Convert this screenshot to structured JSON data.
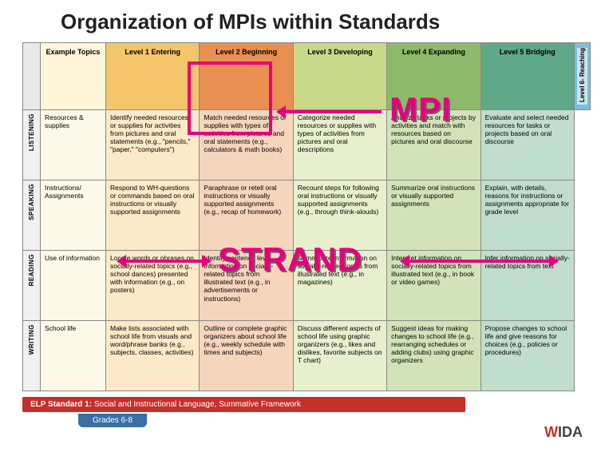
{
  "title": "Organization of MPIs within Standards",
  "headers": {
    "topics": "Example Topics",
    "l1": "Level 1 Entering",
    "l2": "Level 2 Beginning",
    "l3": "Level 3 Developing",
    "l4": "Level 4 Expanding",
    "l5": "Level 5 Bridging",
    "l6": "Level 6- Reaching"
  },
  "rows": [
    {
      "domain": "LISTENING",
      "topic": "Resources & supplies",
      "c1": "Identify needed resources or supplies for activities from pictures and oral statements (e.g., \"pencils,\" \"paper,\" \"computers\")",
      "c2": "Match needed resources or supplies with types of activities from pictures and oral statements (e.g., calculators & math books)",
      "c3": "Categorize needed resources or supplies with types of activities from pictures and oral descriptions",
      "c4": "Analyze tasks or projects by activities and match with resources based on pictures and oral discourse",
      "c5": "Evaluate and select needed resources for tasks or projects based on oral discourse"
    },
    {
      "domain": "SPEAKING",
      "topic": "Instructions/ Assignments",
      "c1": "Respond to WH-questions or commands based on oral instructions or visually supported assignments",
      "c2": "Paraphrase or retell oral instructions or visually supported assignments (e.g., recap of homework)",
      "c3": "Recount steps for following oral instructions or visually supported assignments (e.g., through think-alouds)",
      "c4": "Summarize oral instructions or visually supported assignments",
      "c5": "Explain, with details, reasons for instructions or assignments appropriate for grade level"
    },
    {
      "domain": "READING",
      "topic": "Use of information",
      "c1": "Locate words or phrases on socially-related topics (e.g., school dances) presented with information (e.g., on posters)",
      "c2": "Identify sentence level information on socially-related topics from illustrated text (e.g., in advertisements or instructions)",
      "c3": "Summarize information on socially-related topics from illustrated text (e.g., in magazines)",
      "c4": "Interpret information on socially-related topics from illustrated text (e.g., in book or video games)",
      "c5": "Infer information on socially-related topics from text"
    },
    {
      "domain": "WRITING",
      "topic": "School life",
      "c1": "Make lists associated with school life from visuals and word/phrase banks (e.g., subjects, classes, activities)",
      "c2": "Outline or complete graphic organizers about school life (e.g., weekly schedule with times and subjects)",
      "c3": "Discuss different aspects of school life using graphic organizers (e.g., likes and dislikes, favorite subjects on T chart)",
      "c4": "Suggest ideas for making changes to school life (e.g., rearranging schedules or adding clubs) using graphic organizers",
      "c5": "Propose changes to school life and give reasons for choices (e.g., policies or procedures)"
    }
  ],
  "footer": {
    "standard_label": "ELP Standard 1:",
    "standard_text": "Social and Instructional Language, Summative Framework",
    "grades": "Grades 6-8",
    "logo_w": "W",
    "logo_rest": "IDA"
  },
  "overlays": {
    "mpi": "MPI",
    "strand": "STRAND"
  },
  "colors": {
    "accent": "#e6007e",
    "red": "#c4302b",
    "blue": "#3a6ea5"
  }
}
